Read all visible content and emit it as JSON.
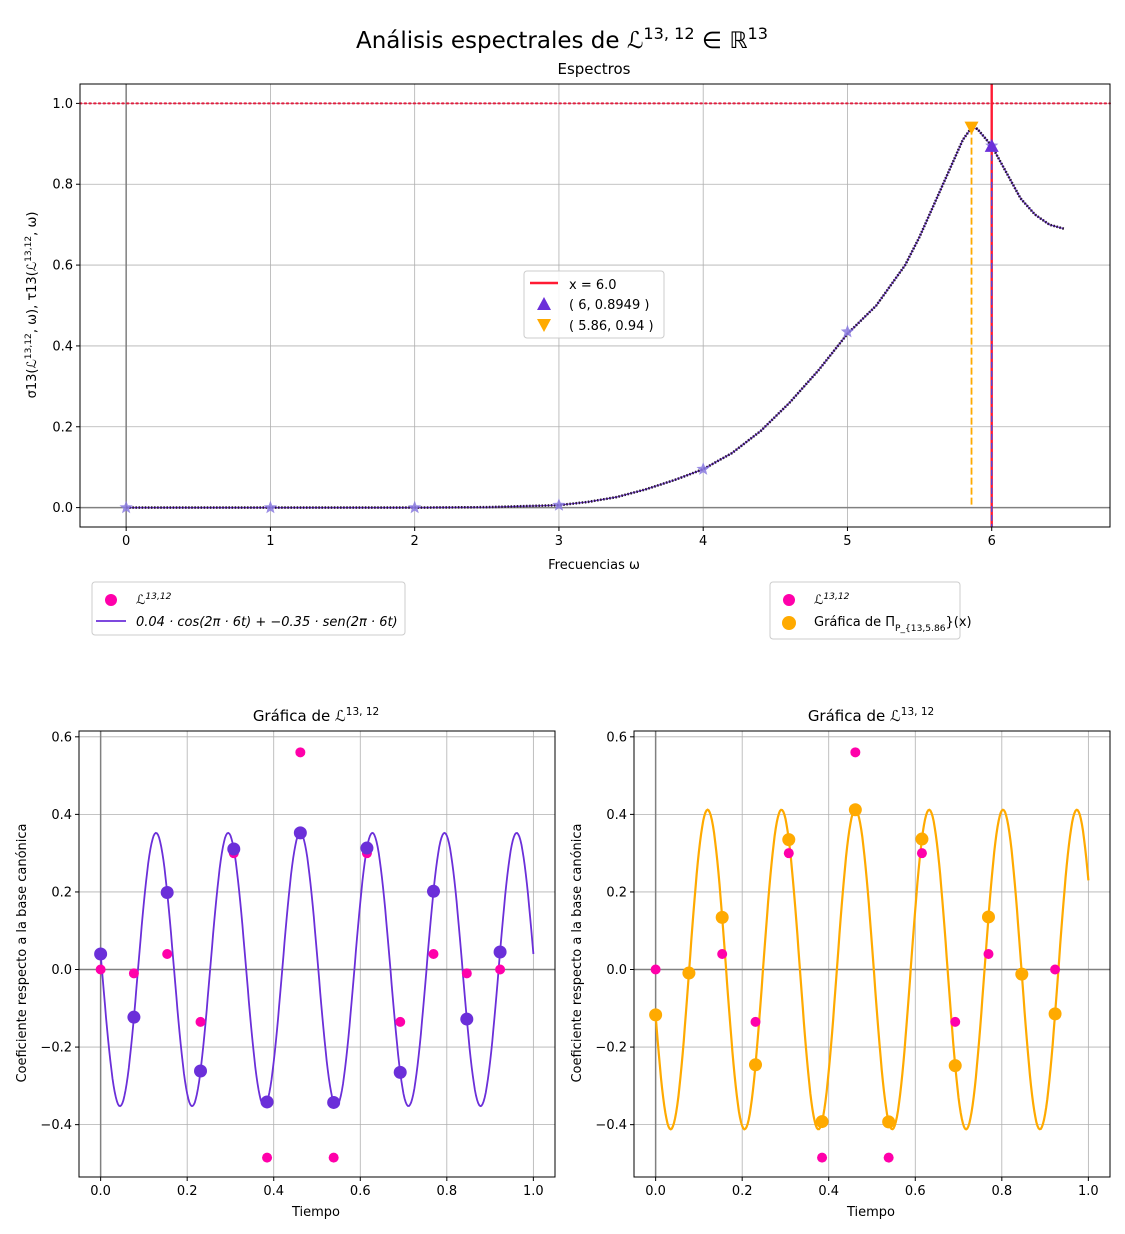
{
  "figure": {
    "suptitle": "Análisis espectrales de ℒ^{13, 12} ∈ ℝ^{13}",
    "colors": {
      "magenta": "#ff00aa",
      "purple": "#6b2fd9",
      "orange": "#ffaa00",
      "red": "#ff1a33",
      "dark": "#2a1a33",
      "star": "#8a7ae0",
      "hline": "#e02040"
    }
  },
  "chart_data": [
    {
      "id": "spectrum",
      "type": "line",
      "title": "Espectros",
      "xlabel": "Frecuencias ω",
      "ylabel": "σ13(ℒ^{13,12}, ω), τ13(ℒ^{13,12}, ω)",
      "xlim": [
        -0.32,
        6.82
      ],
      "ylim": [
        -0.048,
        1.048
      ],
      "xticks": [
        0,
        1,
        2,
        3,
        4,
        5,
        6
      ],
      "xtick_labels": [
        "0",
        "1",
        "2",
        "3",
        "4",
        "5",
        "6"
      ],
      "yticks": [
        0.0,
        0.2,
        0.4,
        0.6,
        0.8,
        1.0
      ],
      "ytick_labels": [
        "0.0",
        "0.2",
        "0.4",
        "0.6",
        "0.8",
        "1.0"
      ],
      "grid": true,
      "series": [
        {
          "kind": "curve",
          "x": [
            0,
            1,
            2,
            2.5,
            3,
            3.2,
            3.4,
            3.6,
            3.8,
            4,
            4.2,
            4.4,
            4.6,
            4.8,
            5,
            5.2,
            5.4,
            5.5,
            5.6,
            5.7,
            5.8,
            5.86,
            5.9,
            6,
            6.1,
            6.2,
            6.3,
            6.4,
            6.5
          ],
          "y": [
            0,
            0,
            0,
            0.001,
            0.006,
            0.014,
            0.026,
            0.045,
            0.068,
            0.095,
            0.135,
            0.19,
            0.26,
            0.34,
            0.43,
            0.5,
            0.6,
            0.67,
            0.75,
            0.83,
            0.91,
            0.94,
            0.937,
            0.895,
            0.83,
            0.765,
            0.725,
            0.7,
            0.69
          ]
        },
        {
          "name": "stars",
          "kind": "markers",
          "x": [
            0,
            1,
            2,
            3,
            4,
            5,
            6
          ],
          "y": [
            0,
            0,
            0,
            0.006,
            0.095,
            0.435,
            0.895
          ]
        }
      ],
      "hline_y": 1.0,
      "vline_x": 6.0,
      "marker_up": {
        "x": 6,
        "y": 0.8949
      },
      "marker_down": {
        "x": 5.86,
        "y": 0.94
      },
      "legend": {
        "placement": "center",
        "entries": [
          "x = 6.0",
          "( 6, 0.8949 )",
          "( 5.86, 0.94 )"
        ]
      }
    },
    {
      "id": "left",
      "type": "scatter",
      "title": "Gráfica de ℒ^{13, 12}",
      "xlabel": "Tiempo",
      "ylabel": "Coeficiente respecto a la base canónica",
      "xlim": [
        -0.05,
        1.05
      ],
      "ylim": [
        -0.535,
        0.615
      ],
      "xticks": [
        0,
        0.2,
        0.4,
        0.6,
        0.8,
        1.0
      ],
      "xtick_labels": [
        "0.0",
        "0.2",
        "0.4",
        "0.6",
        "0.8",
        "1.0"
      ],
      "yticks": [
        -0.4,
        -0.2,
        0.0,
        0.2,
        0.4,
        0.6
      ],
      "ytick_labels": [
        "−0.4",
        "−0.2",
        "0.0",
        "0.2",
        "0.4",
        "0.6"
      ],
      "grid": true,
      "samples_x": [
        0,
        0.0769,
        0.1538,
        0.2308,
        0.3077,
        0.3846,
        0.4615,
        0.5385,
        0.6154,
        0.6923,
        0.7692,
        0.8462,
        0.9231
      ],
      "samples_y": [
        0,
        -0.01,
        0.04,
        -0.135,
        0.3,
        -0.485,
        0.56,
        -0.485,
        0.3,
        -0.135,
        0.04,
        -0.01,
        0
      ],
      "fit": {
        "a": 0.04,
        "b": -0.35,
        "freq": 6
      },
      "legend": {
        "placement": "below-left",
        "entries": [
          "ℒ^{13,12}",
          "0.04 · cos(2π · 6t) + −0.35 · sen(2π · 6t)"
        ]
      }
    },
    {
      "id": "right",
      "type": "scatter",
      "title": "Gráfica de ℒ^{13, 12}",
      "xlabel": "Tiempo",
      "ylabel": "Coeficiente respecto a la base canónica",
      "xlim": [
        -0.05,
        1.05
      ],
      "ylim": [
        -0.535,
        0.615
      ],
      "xticks": [
        0,
        0.2,
        0.4,
        0.6,
        0.8,
        1.0
      ],
      "xtick_labels": [
        "0.0",
        "0.2",
        "0.4",
        "0.6",
        "0.8",
        "1.0"
      ],
      "yticks": [
        -0.4,
        -0.2,
        0.0,
        0.2,
        0.4,
        0.6
      ],
      "ytick_labels": [
        "−0.4",
        "−0.2",
        "0.0",
        "0.2",
        "0.4",
        "0.6"
      ],
      "grid": true,
      "samples_x": [
        0,
        0.0769,
        0.1538,
        0.2308,
        0.3077,
        0.3846,
        0.4615,
        0.5385,
        0.6154,
        0.6923,
        0.7692,
        0.8462,
        0.9231
      ],
      "samples_y": [
        0,
        -0.01,
        0.04,
        -0.135,
        0.3,
        -0.485,
        0.56,
        -0.485,
        0.3,
        -0.135,
        0.04,
        -0.01,
        0
      ],
      "fit": {
        "a": -0.117,
        "b": -0.395,
        "freq": 5.86
      },
      "legend": {
        "placement": "below-right",
        "entries": [
          "ℒ^{13,12}",
          "Gráfica de Π_{P_{13,5.86}}(x)"
        ]
      }
    }
  ]
}
